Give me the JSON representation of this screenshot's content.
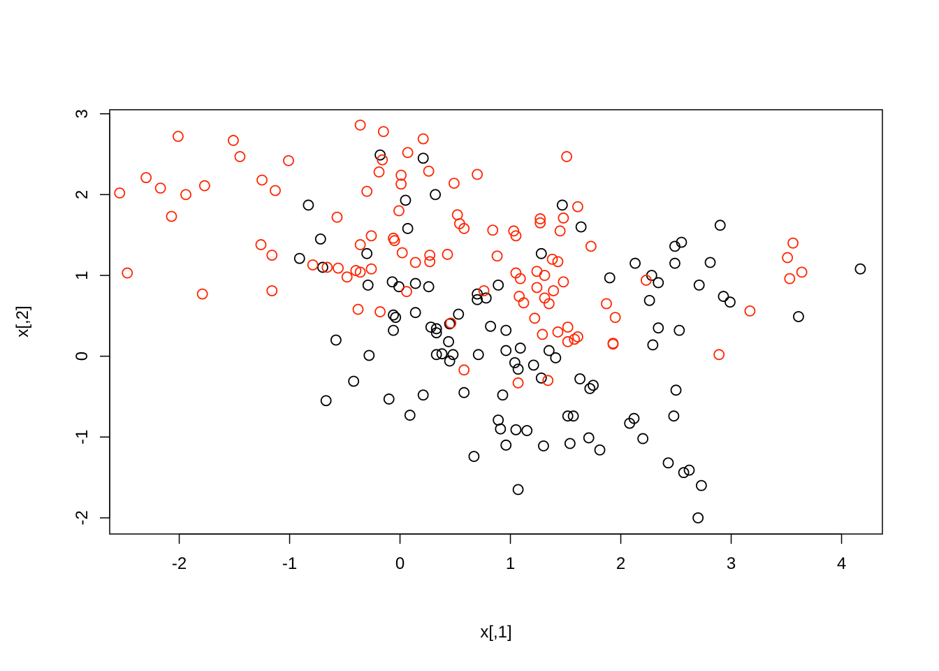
{
  "chart_data": {
    "type": "scatter",
    "title": "",
    "xlabel": "x[,1]",
    "ylabel": "x[,2]",
    "xlim": [
      -2.63,
      4.37
    ],
    "ylim": [
      -2.2,
      3.05
    ],
    "x_ticks": [
      -2,
      -1,
      0,
      1,
      2,
      3,
      4
    ],
    "x_tick_labels": [
      "-2",
      "-1",
      "0",
      "1",
      "2",
      "3",
      "4"
    ],
    "y_ticks": [
      -2,
      -1,
      0,
      1,
      2,
      3
    ],
    "y_tick_labels": [
      "-2",
      "-1",
      "0",
      "1",
      "2",
      "3"
    ],
    "grid": false,
    "series": [
      {
        "color": "#000000",
        "marker": "open-circle",
        "points": [
          [
            -0.18,
            2.49
          ],
          [
            0.21,
            2.45
          ],
          [
            0.32,
            2.0
          ],
          [
            0.05,
            1.93
          ],
          [
            -0.83,
            1.87
          ],
          [
            0.07,
            1.58
          ],
          [
            -0.72,
            1.45
          ],
          [
            -0.3,
            1.27
          ],
          [
            -0.91,
            1.21
          ],
          [
            -0.7,
            1.1
          ],
          [
            -0.07,
            0.92
          ],
          [
            0.14,
            0.9
          ],
          [
            -0.01,
            0.86
          ],
          [
            0.26,
            0.86
          ],
          [
            -0.29,
            0.88
          ],
          [
            -0.06,
            0.51
          ],
          [
            -0.04,
            0.48
          ],
          [
            0.14,
            0.54
          ],
          [
            0.53,
            0.52
          ],
          [
            0.45,
            0.4
          ],
          [
            0.28,
            0.36
          ],
          [
            0.33,
            0.34
          ],
          [
            -0.06,
            0.32
          ],
          [
            0.33,
            0.29
          ],
          [
            0.44,
            0.18
          ],
          [
            -0.58,
            0.2
          ],
          [
            0.33,
            0.02
          ],
          [
            0.38,
            0.03
          ],
          [
            0.48,
            0.02
          ],
          [
            0.45,
            -0.06
          ],
          [
            0.71,
            0.02
          ],
          [
            -0.28,
            0.01
          ],
          [
            0.7,
            0.77
          ],
          [
            0.7,
            0.7
          ],
          [
            0.78,
            0.72
          ],
          [
            0.82,
            0.37
          ],
          [
            0.96,
            0.32
          ],
          [
            0.89,
            0.88
          ],
          [
            0.96,
            0.07
          ],
          [
            1.09,
            0.1
          ],
          [
            1.04,
            -0.08
          ],
          [
            1.07,
            -0.16
          ],
          [
            1.21,
            -0.11
          ],
          [
            1.28,
            -0.27
          ],
          [
            1.35,
            0.07
          ],
          [
            1.41,
            -0.02
          ],
          [
            -0.42,
            -0.31
          ],
          [
            -0.67,
            -0.55
          ],
          [
            -0.1,
            -0.53
          ],
          [
            0.21,
            -0.48
          ],
          [
            0.09,
            -0.73
          ],
          [
            0.58,
            -0.45
          ],
          [
            0.93,
            -0.48
          ],
          [
            0.89,
            -0.79
          ],
          [
            0.91,
            -0.9
          ],
          [
            1.05,
            -0.91
          ],
          [
            1.15,
            -0.92
          ],
          [
            0.96,
            -1.1
          ],
          [
            1.3,
            -1.11
          ],
          [
            0.67,
            -1.24
          ],
          [
            1.07,
            -1.65
          ],
          [
            1.52,
            -0.74
          ],
          [
            1.57,
            -0.74
          ],
          [
            1.54,
            -1.08
          ],
          [
            1.63,
            -0.28
          ],
          [
            1.72,
            -0.4
          ],
          [
            1.75,
            -0.36
          ],
          [
            1.71,
            -1.01
          ],
          [
            1.81,
            -1.16
          ],
          [
            1.47,
            1.87
          ],
          [
            1.64,
            1.6
          ],
          [
            1.28,
            1.27
          ],
          [
            1.9,
            0.97
          ],
          [
            2.13,
            1.15
          ],
          [
            2.28,
            1.0
          ],
          [
            2.34,
            0.91
          ],
          [
            2.26,
            0.69
          ],
          [
            2.34,
            0.35
          ],
          [
            2.29,
            0.14
          ],
          [
            2.49,
            1.36
          ],
          [
            2.55,
            1.41
          ],
          [
            2.49,
            1.15
          ],
          [
            2.53,
            0.32
          ],
          [
            2.5,
            -0.42
          ],
          [
            2.48,
            -0.74
          ],
          [
            2.12,
            -0.77
          ],
          [
            2.08,
            -0.83
          ],
          [
            2.2,
            -1.02
          ],
          [
            2.43,
            -1.32
          ],
          [
            2.57,
            -1.44
          ],
          [
            2.62,
            -1.41
          ],
          [
            2.73,
            -1.6
          ],
          [
            2.7,
            -2.0
          ],
          [
            2.81,
            1.16
          ],
          [
            2.71,
            0.88
          ],
          [
            2.9,
            1.62
          ],
          [
            2.93,
            0.74
          ],
          [
            2.99,
            0.67
          ],
          [
            3.61,
            0.49
          ],
          [
            4.17,
            1.08
          ]
        ]
      },
      {
        "color": "#ff2500",
        "marker": "open-circle",
        "points": [
          [
            -2.54,
            2.02
          ],
          [
            -2.47,
            1.03
          ],
          [
            -2.3,
            2.21
          ],
          [
            -2.17,
            2.08
          ],
          [
            -2.07,
            1.73
          ],
          [
            -2.01,
            2.72
          ],
          [
            -1.94,
            2.0
          ],
          [
            -1.77,
            2.11
          ],
          [
            -1.79,
            0.77
          ],
          [
            -1.51,
            2.67
          ],
          [
            -1.45,
            2.47
          ],
          [
            -1.25,
            2.18
          ],
          [
            -1.26,
            1.38
          ],
          [
            -1.13,
            2.05
          ],
          [
            -1.16,
            1.25
          ],
          [
            -1.16,
            0.81
          ],
          [
            -1.01,
            2.42
          ],
          [
            -0.79,
            1.13
          ],
          [
            -0.66,
            1.1
          ],
          [
            -0.57,
            1.72
          ],
          [
            -0.56,
            1.09
          ],
          [
            -0.48,
            0.98
          ],
          [
            -0.4,
            1.06
          ],
          [
            -0.36,
            1.04
          ],
          [
            -0.36,
            1.38
          ],
          [
            -0.36,
            2.86
          ],
          [
            -0.3,
            2.04
          ],
          [
            -0.26,
            1.49
          ],
          [
            -0.26,
            1.08
          ],
          [
            -0.38,
            0.58
          ],
          [
            -0.18,
            0.55
          ],
          [
            -0.19,
            2.28
          ],
          [
            -0.16,
            2.43
          ],
          [
            -0.15,
            2.78
          ],
          [
            -0.06,
            1.46
          ],
          [
            -0.05,
            1.43
          ],
          [
            -0.01,
            1.8
          ],
          [
            0.01,
            2.24
          ],
          [
            0.01,
            2.13
          ],
          [
            0.02,
            1.28
          ],
          [
            0.07,
            2.52
          ],
          [
            0.06,
            0.8
          ],
          [
            0.14,
            1.16
          ],
          [
            0.21,
            2.69
          ],
          [
            0.26,
            2.29
          ],
          [
            0.27,
            1.25
          ],
          [
            0.27,
            1.17
          ],
          [
            0.43,
            1.26
          ],
          [
            0.46,
            0.41
          ],
          [
            0.49,
            2.14
          ],
          [
            0.52,
            1.75
          ],
          [
            0.54,
            1.64
          ],
          [
            0.58,
            1.58
          ],
          [
            0.58,
            -0.17
          ],
          [
            0.7,
            2.25
          ],
          [
            0.76,
            0.81
          ],
          [
            0.84,
            1.56
          ],
          [
            0.88,
            1.24
          ],
          [
            1.03,
            1.55
          ],
          [
            1.05,
            1.49
          ],
          [
            1.05,
            1.03
          ],
          [
            1.09,
            0.96
          ],
          [
            1.08,
            0.74
          ],
          [
            1.12,
            0.66
          ],
          [
            1.07,
            -0.33
          ],
          [
            1.22,
            0.47
          ],
          [
            1.24,
            1.05
          ],
          [
            1.24,
            0.85
          ],
          [
            1.27,
            1.7
          ],
          [
            1.27,
            1.65
          ],
          [
            1.29,
            0.27
          ],
          [
            1.31,
            1.0
          ],
          [
            1.31,
            0.72
          ],
          [
            1.35,
            0.65
          ],
          [
            1.34,
            -0.3
          ],
          [
            1.38,
            1.2
          ],
          [
            1.39,
            0.81
          ],
          [
            1.43,
            1.17
          ],
          [
            1.43,
            0.3
          ],
          [
            1.45,
            1.55
          ],
          [
            1.48,
            1.71
          ],
          [
            1.48,
            0.92
          ],
          [
            1.51,
            2.47
          ],
          [
            1.52,
            0.36
          ],
          [
            1.52,
            0.18
          ],
          [
            1.58,
            0.21
          ],
          [
            1.61,
            0.24
          ],
          [
            1.61,
            1.85
          ],
          [
            1.73,
            1.36
          ],
          [
            1.87,
            0.65
          ],
          [
            1.93,
            0.15
          ],
          [
            1.93,
            0.16
          ],
          [
            1.95,
            0.48
          ],
          [
            2.23,
            0.94
          ],
          [
            2.89,
            0.02
          ],
          [
            3.17,
            0.56
          ],
          [
            3.51,
            1.22
          ],
          [
            3.53,
            0.96
          ],
          [
            3.56,
            1.4
          ],
          [
            3.64,
            1.04
          ]
        ]
      }
    ]
  }
}
